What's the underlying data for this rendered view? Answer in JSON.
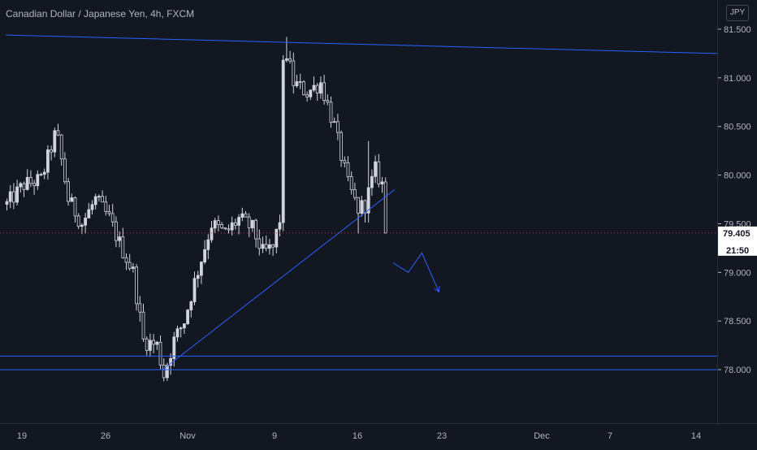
{
  "header": {
    "symbol_title": "Canadian Dollar / Japanese Yen, 4h, FXCM",
    "currency_badge": "JPY"
  },
  "price_scale": {
    "current_price": "79.405",
    "countdown": "21:50"
  },
  "colors": {
    "background": "#131722",
    "candle": "#d1d4dc",
    "drawing": "#2962ff",
    "axis_text": "#b2b5be",
    "price_tag_bg": "#ffffff",
    "price_tag_text": "#131722",
    "current_price_line": "#787b86"
  },
  "chart_data": {
    "type": "candlestick",
    "title": "Canadian Dollar / Japanese Yen, 4h, FXCM",
    "y_ticks": [
      "81.500",
      "81.000",
      "80.500",
      "80.000",
      "79.500",
      "79.000",
      "78.500",
      "78.000"
    ],
    "y_tick_values": [
      81.5,
      81.0,
      80.5,
      80.0,
      79.5,
      79.0,
      78.5,
      78.0
    ],
    "ylim": [
      77.45,
      81.8
    ],
    "x_ticks": [
      "19",
      "26",
      "Nov",
      "9",
      "16",
      "23",
      "Dec",
      "7",
      "14"
    ],
    "current_price": 79.405,
    "keypoints": [
      {
        "t": 0,
        "price": 79.7
      },
      {
        "t": 5,
        "price": 79.9
      },
      {
        "t": 10,
        "price": 79.95
      },
      {
        "t": 14,
        "price": 80.4
      },
      {
        "t": 15,
        "price": 80.35
      },
      {
        "t": 18,
        "price": 79.75
      },
      {
        "t": 22,
        "price": 79.5
      },
      {
        "t": 26,
        "price": 79.75
      },
      {
        "t": 30,
        "price": 79.55
      },
      {
        "t": 33,
        "price": 79.3
      },
      {
        "t": 37,
        "price": 79.0
      },
      {
        "t": 40,
        "price": 78.3
      },
      {
        "t": 44,
        "price": 78.25
      },
      {
        "t": 46,
        "price": 77.95
      },
      {
        "t": 49,
        "price": 78.3
      },
      {
        "t": 52,
        "price": 78.5
      },
      {
        "t": 55,
        "price": 78.9
      },
      {
        "t": 60,
        "price": 79.5
      },
      {
        "t": 64,
        "price": 79.4
      },
      {
        "t": 68,
        "price": 79.55
      },
      {
        "t": 72,
        "price": 79.45
      },
      {
        "t": 75,
        "price": 79.2
      },
      {
        "t": 78,
        "price": 79.25
      },
      {
        "t": 80,
        "price": 79.55
      },
      {
        "t": 81,
        "price": 81.1
      },
      {
        "t": 82,
        "price": 81.25
      },
      {
        "t": 84,
        "price": 80.95
      },
      {
        "t": 88,
        "price": 80.85
      },
      {
        "t": 92,
        "price": 80.95
      },
      {
        "t": 96,
        "price": 80.5
      },
      {
        "t": 100,
        "price": 79.9
      },
      {
        "t": 103,
        "price": 79.65
      },
      {
        "t": 105,
        "price": 79.7
      },
      {
        "t": 108,
        "price": 80.05
      },
      {
        "t": 110,
        "price": 79.9
      },
      {
        "t": 111,
        "price": 79.405
      }
    ],
    "drawings": {
      "resistance_line": [
        [
          0,
          81.44
        ],
        [
          210,
          81.25
        ]
      ],
      "trend_line": [
        [
          46,
          78.0
        ],
        [
          114,
          79.85
        ]
      ],
      "support_line_upper": 78.14,
      "support_line_lower": 78.0,
      "projection_path": [
        [
          113.5,
          79.1
        ],
        [
          118,
          79.0
        ],
        [
          122,
          79.2
        ],
        [
          127,
          78.8
        ]
      ]
    }
  }
}
